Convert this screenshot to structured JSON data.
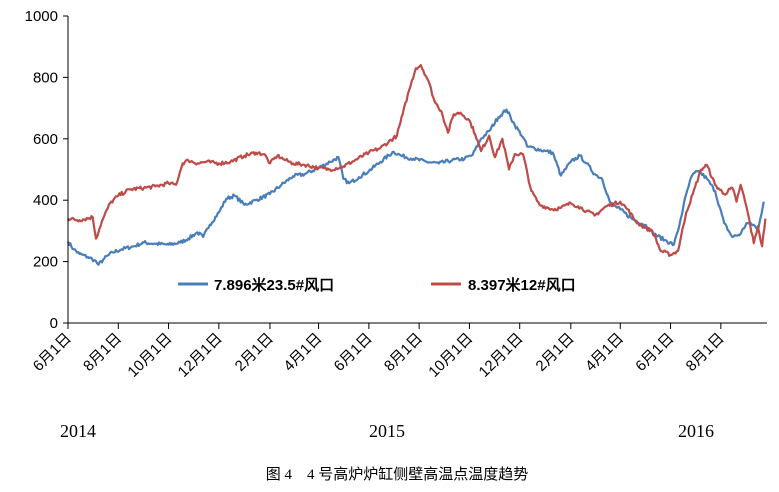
{
  "chart_data": {
    "type": "line",
    "caption": "图 4　4 号高炉炉缸侧壁高温点温度趋势",
    "ylim": [
      0,
      1000
    ],
    "yticks": [
      "0",
      "200",
      "400",
      "600",
      "800",
      "1000"
    ],
    "xticks": [
      "6月1日",
      "8月1日",
      "10月1日",
      "12月1日",
      "2月1日",
      "4月1日",
      "6月1日",
      "8月1日",
      "10月1日",
      "12月1日",
      "2月1日",
      "4月1日",
      "6月1日",
      "8月1日"
    ],
    "years": [
      "2014",
      "2015",
      "2016"
    ],
    "grid": false,
    "legend_position": "inside-bottom",
    "colors": {
      "series1": "#4a7ebb",
      "series2": "#be4b48"
    },
    "series": [
      {
        "name": "7.896米23.5#风口",
        "points": [
          [
            "2014-06-01",
            265
          ],
          [
            "2014-06-08",
            240
          ],
          [
            "2014-06-15",
            225
          ],
          [
            "2014-06-25",
            215
          ],
          [
            "2014-07-03",
            205
          ],
          [
            "2014-07-08",
            190
          ],
          [
            "2014-07-15",
            210
          ],
          [
            "2014-07-25",
            230
          ],
          [
            "2014-08-05",
            240
          ],
          [
            "2014-08-20",
            250
          ],
          [
            "2014-09-01",
            262
          ],
          [
            "2014-09-15",
            258
          ],
          [
            "2014-10-01",
            255
          ],
          [
            "2014-10-15",
            262
          ],
          [
            "2014-10-25",
            275
          ],
          [
            "2014-11-05",
            295
          ],
          [
            "2014-11-12",
            280
          ],
          [
            "2014-11-20",
            320
          ],
          [
            "2014-12-01",
            360
          ],
          [
            "2014-12-10",
            405
          ],
          [
            "2014-12-20",
            415
          ],
          [
            "2015-01-01",
            385
          ],
          [
            "2015-01-15",
            400
          ],
          [
            "2015-02-01",
            420
          ],
          [
            "2015-02-15",
            450
          ],
          [
            "2015-03-01",
            478
          ],
          [
            "2015-03-15",
            485
          ],
          [
            "2015-04-01",
            505
          ],
          [
            "2015-04-15",
            525
          ],
          [
            "2015-04-25",
            540
          ],
          [
            "2015-05-01",
            470
          ],
          [
            "2015-05-08",
            455
          ],
          [
            "2015-05-20",
            475
          ],
          [
            "2015-06-01",
            495
          ],
          [
            "2015-06-15",
            525
          ],
          [
            "2015-07-01",
            558
          ],
          [
            "2015-07-10",
            545
          ],
          [
            "2015-07-25",
            535
          ],
          [
            "2015-08-10",
            525
          ],
          [
            "2015-08-25",
            520
          ],
          [
            "2015-09-10",
            530
          ],
          [
            "2015-09-25",
            535
          ],
          [
            "2015-10-05",
            548
          ],
          [
            "2015-10-15",
            600
          ],
          [
            "2015-10-25",
            625
          ],
          [
            "2015-11-05",
            670
          ],
          [
            "2015-11-15",
            695
          ],
          [
            "2015-11-25",
            645
          ],
          [
            "2015-12-05",
            605
          ],
          [
            "2015-12-10",
            575
          ],
          [
            "2016-01-01",
            560
          ],
          [
            "2016-01-10",
            555
          ],
          [
            "2016-01-20",
            480
          ],
          [
            "2016-02-01",
            525
          ],
          [
            "2016-02-12",
            545
          ],
          [
            "2016-02-20",
            520
          ],
          [
            "2016-03-01",
            485
          ],
          [
            "2016-03-10",
            470
          ],
          [
            "2016-03-20",
            390
          ],
          [
            "2016-04-01",
            370
          ],
          [
            "2016-04-15",
            340
          ],
          [
            "2016-05-01",
            320
          ],
          [
            "2016-05-12",
            290
          ],
          [
            "2016-05-25",
            270
          ],
          [
            "2016-06-05",
            255
          ],
          [
            "2016-06-10",
            300
          ],
          [
            "2016-06-20",
            420
          ],
          [
            "2016-06-27",
            480
          ],
          [
            "2016-07-05",
            495
          ],
          [
            "2016-07-15",
            470
          ],
          [
            "2016-07-25",
            430
          ],
          [
            "2016-08-05",
            325
          ],
          [
            "2016-08-15",
            280
          ],
          [
            "2016-08-25",
            290
          ],
          [
            "2016-09-01",
            325
          ],
          [
            "2016-09-10",
            320
          ],
          [
            "2016-09-15",
            300
          ],
          [
            "2016-09-22",
            395
          ]
        ]
      },
      {
        "name": "8.397米12#风口",
        "points": [
          [
            "2014-06-01",
            340
          ],
          [
            "2014-06-15",
            335
          ],
          [
            "2014-07-01",
            345
          ],
          [
            "2014-07-05",
            275
          ],
          [
            "2014-07-12",
            330
          ],
          [
            "2014-07-22",
            390
          ],
          [
            "2014-08-01",
            415
          ],
          [
            "2014-08-15",
            435
          ],
          [
            "2014-09-01",
            440
          ],
          [
            "2014-09-15",
            445
          ],
          [
            "2014-10-01",
            455
          ],
          [
            "2014-10-10",
            450
          ],
          [
            "2014-10-18",
            520
          ],
          [
            "2014-10-25",
            530
          ],
          [
            "2014-11-05",
            520
          ],
          [
            "2014-11-15",
            525
          ],
          [
            "2014-12-01",
            520
          ],
          [
            "2014-12-15",
            525
          ],
          [
            "2015-01-01",
            545
          ],
          [
            "2015-01-15",
            555
          ],
          [
            "2015-01-25",
            550
          ],
          [
            "2015-02-01",
            520
          ],
          [
            "2015-02-10",
            545
          ],
          [
            "2015-02-20",
            530
          ],
          [
            "2015-03-01",
            520
          ],
          [
            "2015-03-15",
            515
          ],
          [
            "2015-04-01",
            505
          ],
          [
            "2015-04-15",
            500
          ],
          [
            "2015-05-01",
            510
          ],
          [
            "2015-05-15",
            530
          ],
          [
            "2015-06-01",
            555
          ],
          [
            "2015-06-15",
            570
          ],
          [
            "2015-06-25",
            590
          ],
          [
            "2015-07-05",
            610
          ],
          [
            "2015-07-12",
            680
          ],
          [
            "2015-07-20",
            760
          ],
          [
            "2015-07-28",
            830
          ],
          [
            "2015-08-03",
            840
          ],
          [
            "2015-08-12",
            790
          ],
          [
            "2015-08-20",
            720
          ],
          [
            "2015-08-28",
            690
          ],
          [
            "2015-09-05",
            620
          ],
          [
            "2015-09-12",
            680
          ],
          [
            "2015-09-20",
            685
          ],
          [
            "2015-10-01",
            660
          ],
          [
            "2015-10-08",
            615
          ],
          [
            "2015-10-15",
            560
          ],
          [
            "2015-10-25",
            610
          ],
          [
            "2015-11-01",
            540
          ],
          [
            "2015-11-10",
            600
          ],
          [
            "2015-11-18",
            500
          ],
          [
            "2015-11-25",
            550
          ],
          [
            "2015-12-05",
            550
          ],
          [
            "2015-12-15",
            430
          ],
          [
            "2015-12-25",
            385
          ],
          [
            "2016-01-10",
            370
          ],
          [
            "2016-01-20",
            375
          ],
          [
            "2016-02-01",
            390
          ],
          [
            "2016-02-10",
            380
          ],
          [
            "2016-02-20",
            365
          ],
          [
            "2016-03-01",
            350
          ],
          [
            "2016-03-15",
            380
          ],
          [
            "2016-04-01",
            395
          ],
          [
            "2016-04-10",
            370
          ],
          [
            "2016-04-20",
            330
          ],
          [
            "2016-05-01",
            310
          ],
          [
            "2016-05-10",
            300
          ],
          [
            "2016-05-20",
            235
          ],
          [
            "2016-06-01",
            222
          ],
          [
            "2016-06-10",
            235
          ],
          [
            "2016-06-20",
            360
          ],
          [
            "2016-06-28",
            420
          ],
          [
            "2016-07-08",
            500
          ],
          [
            "2016-07-15",
            515
          ],
          [
            "2016-07-25",
            450
          ],
          [
            "2016-08-05",
            420
          ],
          [
            "2016-08-15",
            440
          ],
          [
            "2016-08-20",
            395
          ],
          [
            "2016-08-25",
            450
          ],
          [
            "2016-09-01",
            380
          ],
          [
            "2016-09-10",
            260
          ],
          [
            "2016-09-15",
            315
          ],
          [
            "2016-09-20",
            250
          ],
          [
            "2016-09-24",
            340
          ]
        ]
      }
    ]
  }
}
